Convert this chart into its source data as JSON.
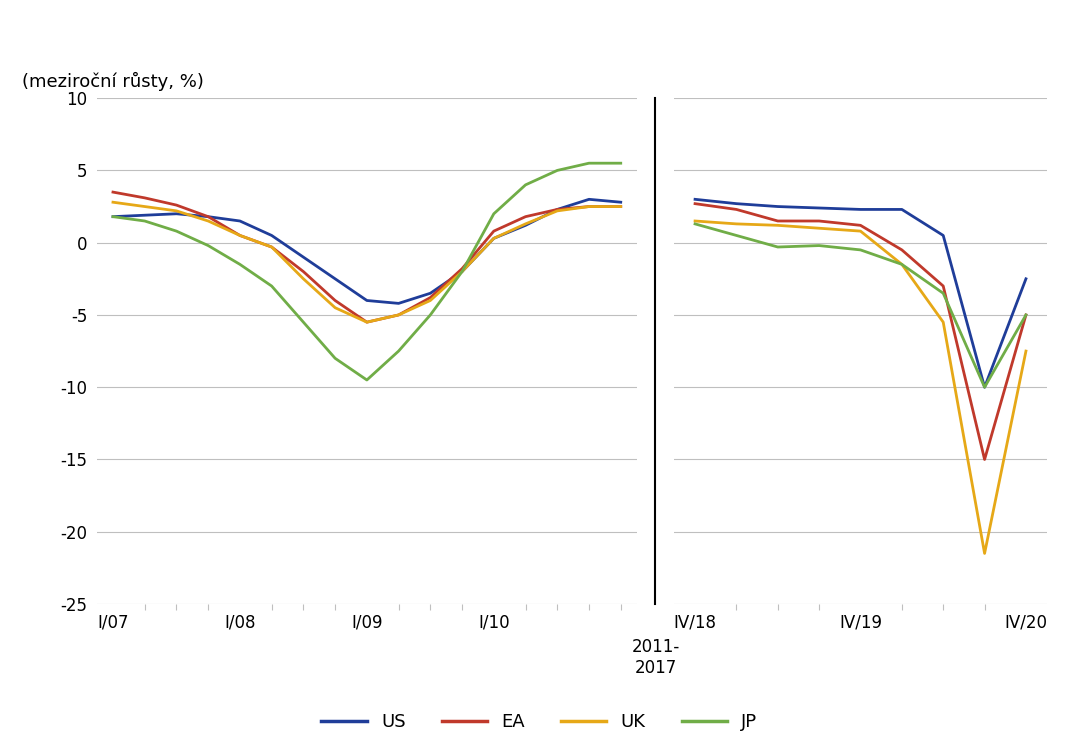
{
  "ylabel": "(meziroční růsty, %)",
  "ylim": [
    -25,
    10
  ],
  "yticks": [
    -25,
    -20,
    -15,
    -10,
    -5,
    0,
    5,
    10
  ],
  "background_color": "#ffffff",
  "grid_color": "#bfbfbf",
  "line_width": 2.0,
  "colors": {
    "US": "#1f3d99",
    "EA": "#c0392b",
    "UK": "#e6a817",
    "JP": "#70ad47"
  },
  "left_xticks": [
    0,
    4,
    8,
    12,
    16
  ],
  "left_xlabels": [
    "I/07",
    "I/08",
    "I/09",
    "I/10",
    ""
  ],
  "right_xticks": [
    0,
    4,
    8
  ],
  "right_xlabels": [
    "IV/18",
    "IV/19",
    "IV/20"
  ],
  "us_left": [
    1.8,
    1.9,
    2.0,
    1.8,
    1.5,
    0.5,
    -1.0,
    -2.5,
    -4.0,
    -4.2,
    -3.5,
    -2.0,
    0.3,
    1.2,
    2.3,
    3.0,
    2.8
  ],
  "ea_left": [
    3.5,
    3.1,
    2.6,
    1.8,
    0.5,
    -0.3,
    -2.0,
    -4.0,
    -5.5,
    -5.0,
    -3.8,
    -1.8,
    0.8,
    1.8,
    2.3,
    2.5,
    2.5
  ],
  "uk_left": [
    2.8,
    2.5,
    2.2,
    1.5,
    0.5,
    -0.3,
    -2.5,
    -4.5,
    -5.5,
    -5.0,
    -4.0,
    -2.0,
    0.3,
    1.3,
    2.2,
    2.5,
    2.5
  ],
  "jp_left": [
    1.8,
    1.5,
    0.8,
    -0.2,
    -1.5,
    -3.0,
    -5.5,
    -8.0,
    -9.5,
    -7.5,
    -5.0,
    -2.0,
    2.0,
    4.0,
    5.0,
    5.5,
    5.5
  ],
  "us_right": [
    3.0,
    2.7,
    2.5,
    2.4,
    2.3,
    2.3,
    0.5,
    -10.0,
    -2.5
  ],
  "ea_right": [
    2.7,
    2.3,
    1.5,
    1.5,
    1.2,
    -0.5,
    -3.0,
    -15.0,
    -5.0
  ],
  "uk_right": [
    1.5,
    1.3,
    1.2,
    1.0,
    0.8,
    -1.5,
    -5.5,
    -21.5,
    -7.5
  ],
  "jp_right": [
    1.3,
    0.5,
    -0.3,
    -0.2,
    -0.5,
    -1.5,
    -3.5,
    -10.0,
    -5.0
  ],
  "legend_entries": [
    "US",
    "EA",
    "UK",
    "JP"
  ]
}
